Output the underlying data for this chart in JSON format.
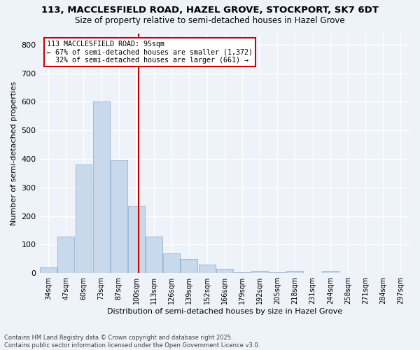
{
  "title": "113, MACCLESFIELD ROAD, HAZEL GROVE, STOCKPORT, SK7 6DT",
  "subtitle": "Size of property relative to semi-detached houses in Hazel Grove",
  "xlabel": "Distribution of semi-detached houses by size in Hazel Grove",
  "ylabel": "Number of semi-detached properties",
  "property_label": "113 MACCLESFIELD ROAD: 95sqm",
  "pct_smaller": 67,
  "count_smaller": 1372,
  "pct_larger": 32,
  "count_larger": 661,
  "bin_labels": [
    "34sqm",
    "47sqm",
    "60sqm",
    "73sqm",
    "87sqm",
    "100sqm",
    "113sqm",
    "126sqm",
    "139sqm",
    "152sqm",
    "166sqm",
    "179sqm",
    "192sqm",
    "205sqm",
    "218sqm",
    "231sqm",
    "244sqm",
    "258sqm",
    "271sqm",
    "284sqm",
    "297sqm"
  ],
  "bar_values": [
    20,
    128,
    380,
    600,
    395,
    235,
    128,
    70,
    50,
    30,
    15,
    3,
    8,
    2,
    8,
    1,
    8,
    1,
    1,
    1,
    1
  ],
  "bar_color": "#c9d9ec",
  "bar_edge_color": "#a0b8d8",
  "vline_color": "#cc0000",
  "annotation_box_color": "#cc0000",
  "background_color": "#eef2f9",
  "grid_color": "#ffffff",
  "ylim": [
    0,
    840
  ],
  "yticks": [
    0,
    100,
    200,
    300,
    400,
    500,
    600,
    700,
    800
  ],
  "footer": "Contains HM Land Registry data © Crown copyright and database right 2025.\nContains public sector information licensed under the Open Government Licence v3.0."
}
